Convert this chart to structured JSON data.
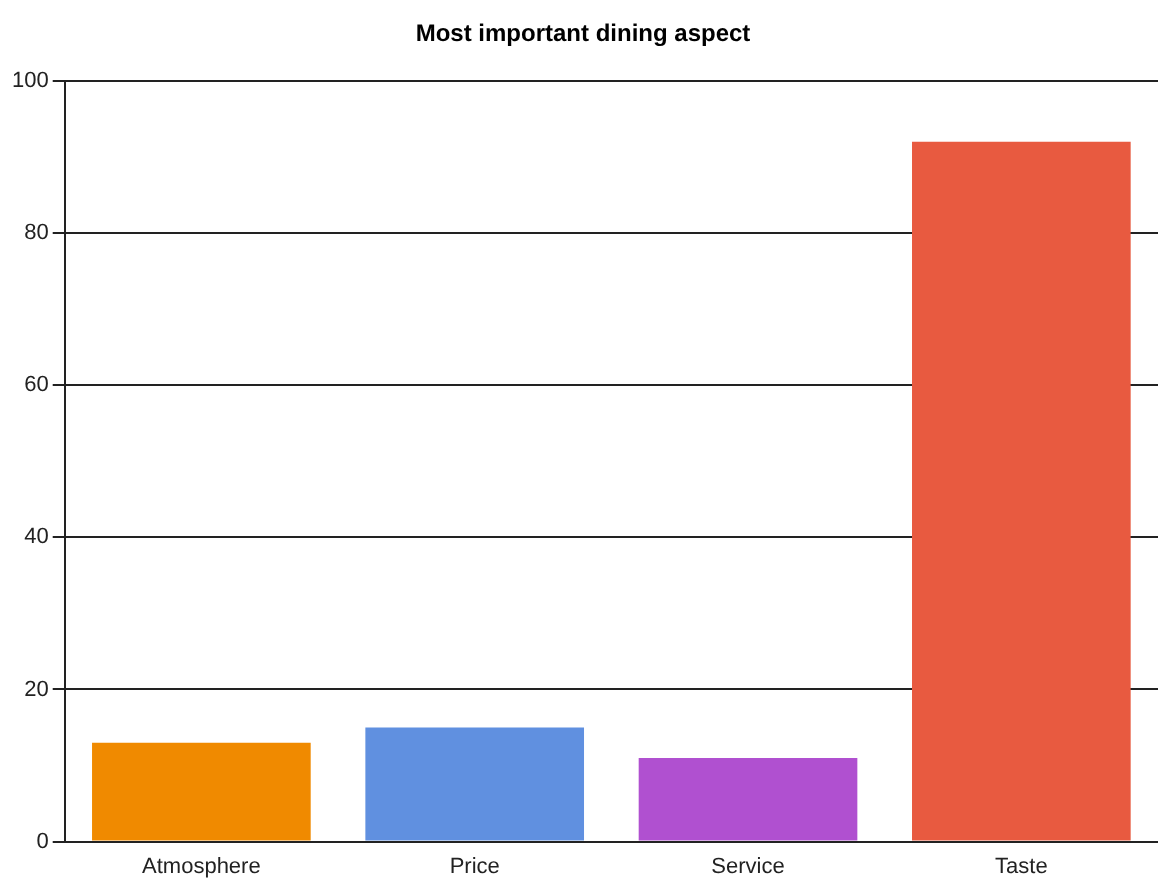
{
  "chart_data": {
    "type": "bar",
    "title": "Most important dining aspect",
    "categories": [
      "Atmosphere",
      "Price",
      "Service",
      "Taste"
    ],
    "values": [
      13,
      15,
      11,
      92
    ],
    "colors": [
      "#f08a00",
      "#6090e0",
      "#b050d0",
      "#e85a40"
    ],
    "ylim": [
      0,
      100
    ],
    "yticks": [
      0,
      20,
      40,
      60,
      80,
      100
    ],
    "grid": "y",
    "legend": false
  }
}
